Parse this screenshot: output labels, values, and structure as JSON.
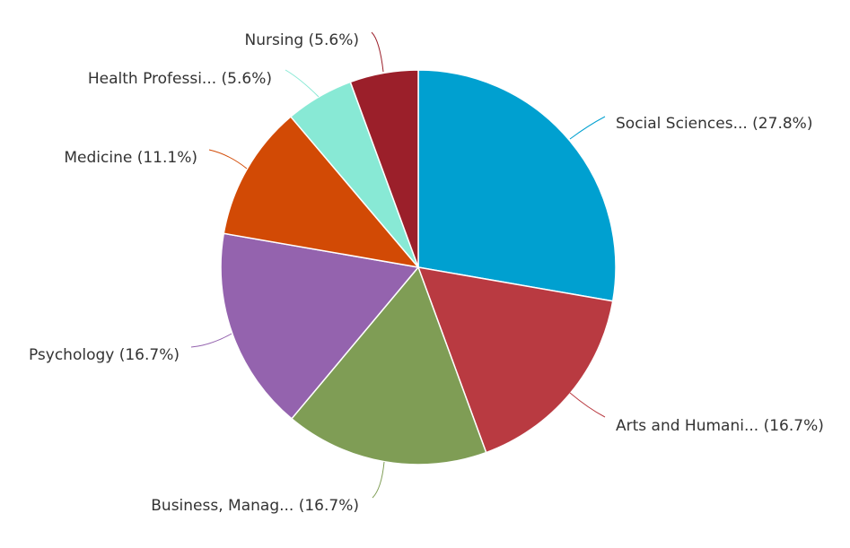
{
  "chart_data": {
    "type": "pie",
    "start_angle": "12 o'clock",
    "direction": "clockwise",
    "slices": [
      {
        "label": "Social Sciences...",
        "value": 27.8,
        "display": "Social Sciences... (27.8%)",
        "color": "#00a0d0"
      },
      {
        "label": "Arts and Humani...",
        "value": 16.7,
        "display": "Arts and Humani... (16.7%)",
        "color": "#b93a41"
      },
      {
        "label": "Business, Manag...",
        "value": 16.7,
        "display": "Business, Manag... (16.7%)",
        "color": "#7f9d55"
      },
      {
        "label": "Psychology",
        "value": 16.7,
        "display": "Psychology (16.7%)",
        "color": "#9463ae"
      },
      {
        "label": "Medicine",
        "value": 11.1,
        "display": "Medicine (11.1%)",
        "color": "#d24a05"
      },
      {
        "label": "Health Professi...",
        "value": 5.6,
        "display": "Health Professi... (5.6%)",
        "color": "#88e9d5"
      },
      {
        "label": "Nursing",
        "value": 5.6,
        "display": "Nursing (5.6%)",
        "color": "#9b1f2a"
      }
    ]
  }
}
